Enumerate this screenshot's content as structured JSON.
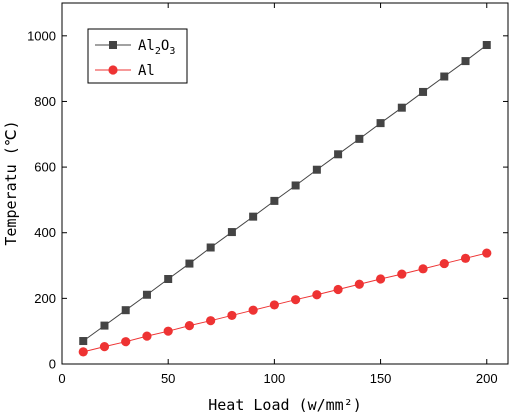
{
  "chart_data": {
    "type": "line",
    "xlabel": "Heat Load (w/mm²)",
    "ylabel": "Temperatu (℃)",
    "xlim": [
      0,
      210
    ],
    "ylim": [
      0,
      1100
    ],
    "xticks": [
      "0",
      "50",
      "100",
      "150",
      "200"
    ],
    "yticks": [
      "0",
      "200",
      "400",
      "600",
      "800",
      "1000"
    ],
    "x": [
      10,
      20,
      30,
      40,
      50,
      60,
      70,
      80,
      90,
      100,
      110,
      120,
      130,
      140,
      150,
      160,
      170,
      180,
      190,
      200
    ],
    "series": [
      {
        "name": "Al2O3",
        "name_base": "Al",
        "name_sub1": "2",
        "name_mid": "O",
        "name_sub2": "3",
        "marker": "square",
        "color": "#444444",
        "values": [
          70,
          117,
          164,
          211,
          259,
          306,
          355,
          402,
          449,
          497,
          544,
          592,
          639,
          686,
          734,
          781,
          829,
          876,
          923,
          972
        ]
      },
      {
        "name": "Al",
        "marker": "circle",
        "color": "#ee3333",
        "values": [
          37,
          53,
          68,
          85,
          100,
          117,
          132,
          148,
          164,
          180,
          196,
          211,
          227,
          243,
          259,
          274,
          290,
          306,
          322,
          338
        ]
      }
    ],
    "legend_position": "top-left",
    "grid": false
  }
}
